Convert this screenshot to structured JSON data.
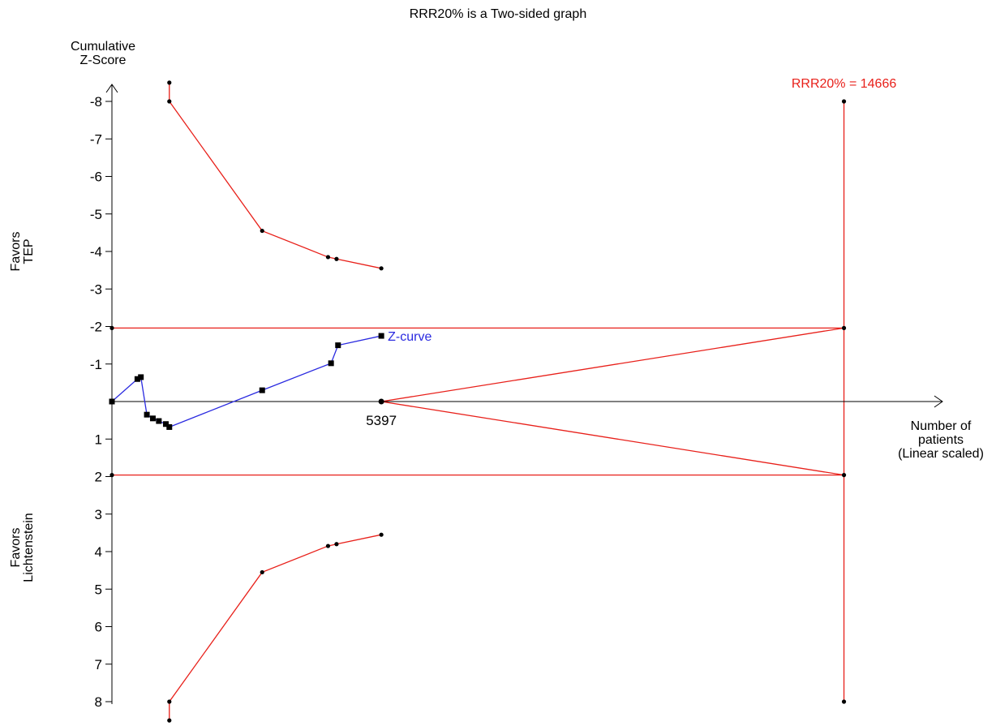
{
  "chart_data": {
    "type": "line",
    "title": "RRR20% is a Two-sided graph",
    "ylabel_lines": [
      "Cumulative",
      "Z-Score"
    ],
    "xlabel_lines": [
      "Number of",
      "patients",
      "(Linear scaled)"
    ],
    "side_labels": {
      "top": [
        "Favors",
        "TEP"
      ],
      "bottom": [
        "Favors",
        "Lichtenstein"
      ]
    },
    "ylim": [
      -8.5,
      8.5
    ],
    "xlim": [
      0,
      16000
    ],
    "yticks": [
      -8,
      -7,
      -6,
      -5,
      -4,
      -3,
      -2,
      -1,
      1,
      2,
      3,
      4,
      5,
      6,
      7,
      8
    ],
    "x_marker": {
      "value": 5397,
      "label": "5397"
    },
    "required_information_size": {
      "value": 14666,
      "label": "RRR20% = 14666",
      "color": "#e8201a"
    },
    "colors": {
      "boundary": "#e8201a",
      "zcurve": "#2a2ae0",
      "axis": "#000000",
      "points": "#000000"
    },
    "series": [
      {
        "name": "Z-curve",
        "color": "#2a2ae0",
        "x": [
          0,
          510,
          580,
          700,
          820,
          940,
          1080,
          1150,
          3010,
          4390,
          4530,
          5397
        ],
        "y": [
          0,
          -0.6,
          -0.65,
          0.35,
          0.45,
          0.52,
          0.6,
          0.68,
          -0.3,
          -1.02,
          -1.5,
          -1.75
        ]
      }
    ],
    "boundaries": {
      "upper_monitoring": {
        "x": [
          1150,
          1150,
          3010,
          4330,
          4500,
          5397
        ],
        "y": [
          -8.5,
          -8.0,
          -4.55,
          -3.85,
          -3.8,
          -3.55
        ]
      },
      "lower_monitoring": {
        "x": [
          1150,
          1150,
          3010,
          4330,
          4500,
          5397
        ],
        "y": [
          8.5,
          8.0,
          4.55,
          3.85,
          3.8,
          3.55
        ]
      },
      "conventional_upper": {
        "y": -1.96
      },
      "conventional_lower": {
        "y": 1.96
      },
      "futility_upper": {
        "x": [
          5397,
          14666
        ],
        "y": [
          0,
          -1.96
        ]
      },
      "futility_lower": {
        "x": [
          5397,
          14666
        ],
        "y": [
          0,
          1.96
        ]
      },
      "ris_line": {
        "x": 14666,
        "y": [
          -8.0,
          8.0
        ]
      }
    }
  }
}
